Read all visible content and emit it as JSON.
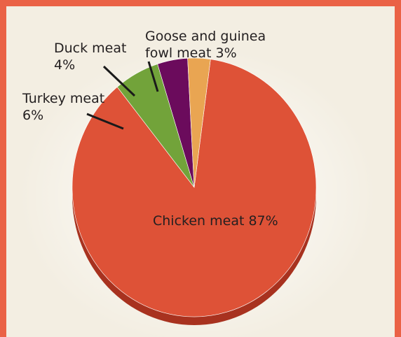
{
  "chart_data": {
    "type": "pie",
    "title": "",
    "slices": [
      {
        "label": "Chicken meat",
        "value": 87,
        "text": "Chicken meat 87%",
        "color": "#de5237",
        "side_color": "#a8321f"
      },
      {
        "label": "Turkey meat",
        "value": 6,
        "lines": [
          "Turkey meat",
          "6%"
        ],
        "color": "#72a33a",
        "side_color": "#4f7a25"
      },
      {
        "label": "Duck meat",
        "value": 4,
        "lines": [
          "Duck meat",
          "4%"
        ],
        "color": "#6b0b5c",
        "side_color": "#4a0640"
      },
      {
        "label": "Goose and guinea fowl meat",
        "value": 3,
        "lines": [
          "Goose and guinea",
          "fowl meat 3%"
        ],
        "color": "#e9a552",
        "side_color": "#b97c33"
      }
    ],
    "unit": "%",
    "legend": "none (direct labels)"
  },
  "colors": {
    "frame": "#ea6246",
    "background": "#f3eee2"
  }
}
